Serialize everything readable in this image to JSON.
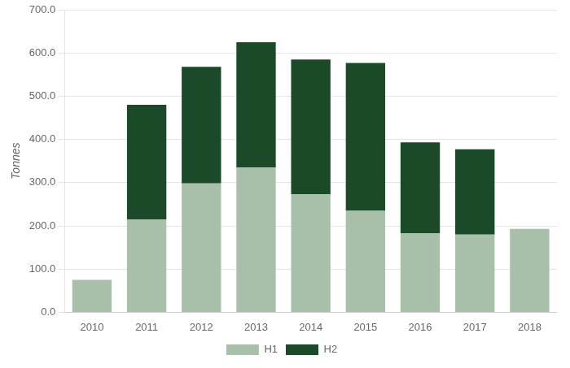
{
  "chart_data": {
    "type": "bar",
    "stacked": true,
    "categories": [
      "2010",
      "2011",
      "2012",
      "2013",
      "2014",
      "2015",
      "2016",
      "2017",
      "2018"
    ],
    "series": [
      {
        "name": "H1",
        "color": "#a8c0aa",
        "values": [
          75,
          215,
          298,
          335,
          273,
          235,
          183,
          180,
          193
        ]
      },
      {
        "name": "H2",
        "color": "#1b4a28",
        "values": [
          0,
          265,
          270,
          290,
          312,
          342,
          210,
          197,
          0
        ]
      }
    ],
    "ylabel": "Tonnes",
    "ylim": [
      0,
      700
    ],
    "yticks": [
      {
        "value": 0,
        "label": "0.0"
      },
      {
        "value": 100,
        "label": "100.0"
      },
      {
        "value": 200,
        "label": "200.0"
      },
      {
        "value": 300,
        "label": "300.0"
      },
      {
        "value": 400,
        "label": "400.0"
      },
      {
        "value": 500,
        "label": "500.0"
      },
      {
        "value": 600,
        "label": "600.0"
      },
      {
        "value": 700,
        "label": "700.0"
      }
    ],
    "grid": true,
    "legend": "bottom"
  }
}
